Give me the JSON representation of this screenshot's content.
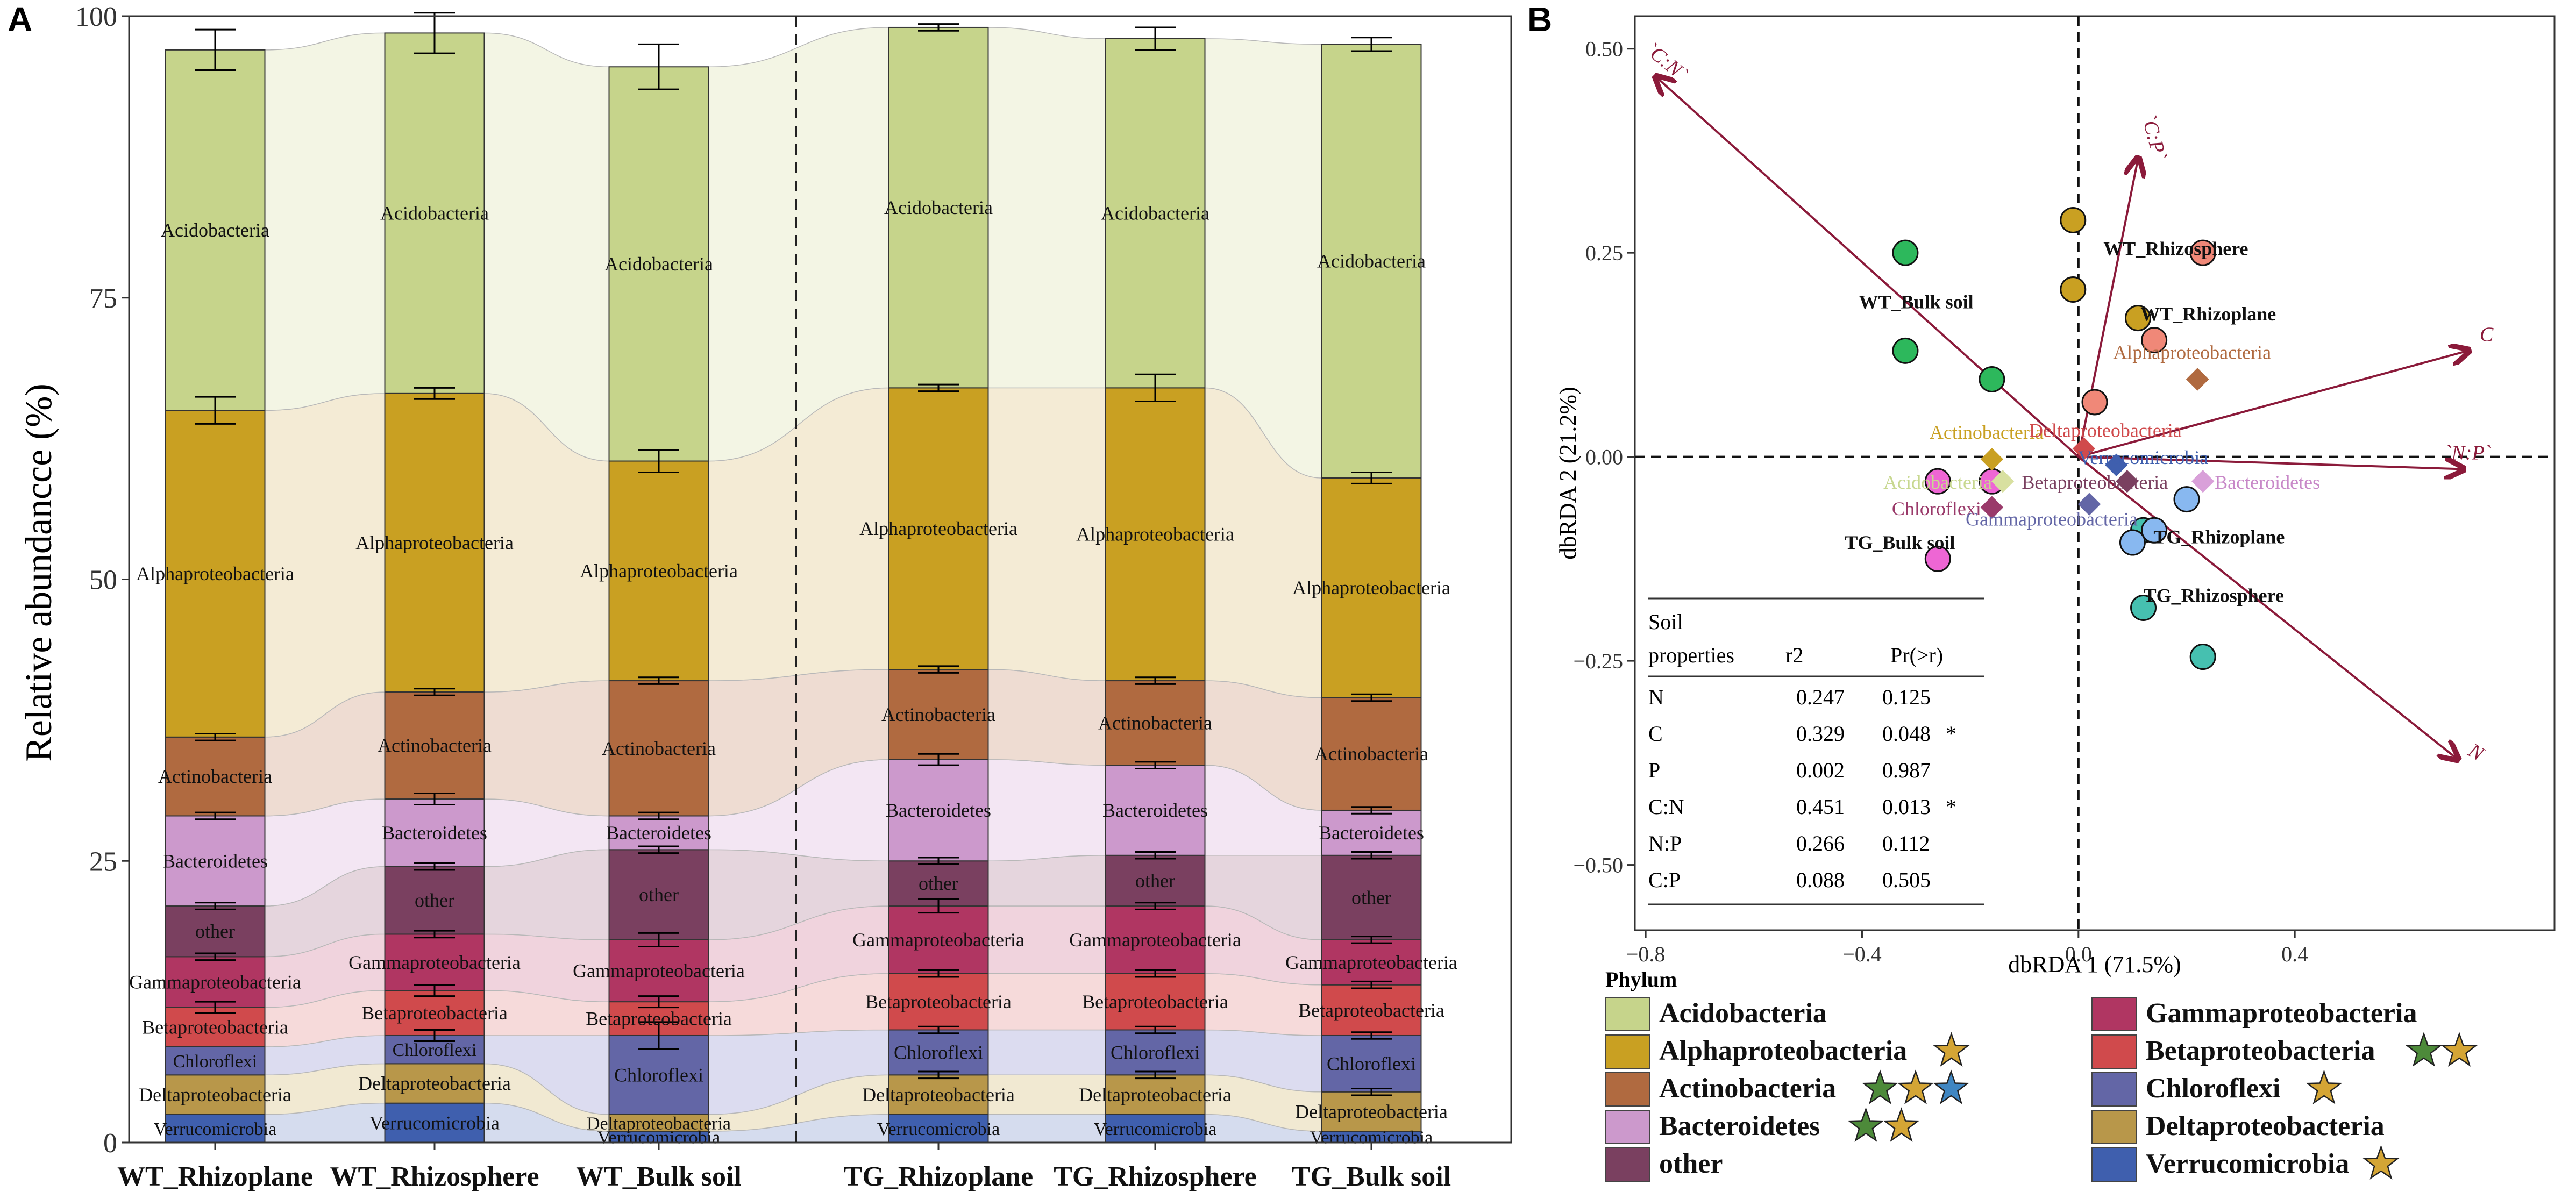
{
  "panel_a_label": "A",
  "panel_b_label": "B",
  "chart_data": [
    {
      "type": "stacked-bar",
      "panel": "A",
      "ylabel": "Relative abundancce (%)",
      "ylim": [
        0,
        100
      ],
      "yticks": [
        "0",
        "25",
        "50",
        "75",
        "100"
      ],
      "ytick_values": [
        0,
        25,
        50,
        75,
        100
      ],
      "categories": [
        "WT_Rhizoplane",
        "WT_Rhizosphere",
        "WT_Bulk soil",
        "TG_Rhizoplane",
        "TG_Rhizosphere",
        "TG_Bulk soil"
      ],
      "series": [
        {
          "name": "Verrucomicrobia",
          "label": "Verrucomicrobia",
          "color": "#3f5fae",
          "fill": "#d5dcee",
          "values": [
            2.5,
            3.5,
            1.0,
            2.5,
            2.5,
            1.0
          ],
          "err": [
            0,
            0,
            0,
            0,
            0,
            0
          ]
        },
        {
          "name": "Deltaproteobacteria",
          "label": "Deltaproteobacteria",
          "color": "#b8974a",
          "fill": "#f1e9d2",
          "values": [
            3.5,
            3.5,
            1.5,
            3.5,
            3.5,
            3.5
          ],
          "err": [
            0,
            0,
            0,
            0.3,
            0.3,
            0.3
          ]
        },
        {
          "name": "Chloroflexi",
          "label": "Chloroflexi",
          "color": "#6366a6",
          "fill": "#dcdcf0",
          "values": [
            2.5,
            2.5,
            7.0,
            4.0,
            4.0,
            5.0
          ],
          "err": [
            0,
            0.5,
            1.2,
            0.3,
            0.3,
            0.3
          ]
        },
        {
          "name": "Betaproteobacteria",
          "label": "Betaproteobacteria",
          "color": "#d04a4c",
          "fill": "#f6dada",
          "values": [
            3.5,
            4.0,
            3.0,
            5.0,
            5.0,
            4.5
          ],
          "err": [
            0.5,
            0.5,
            0.5,
            0.3,
            0.3,
            0.3
          ]
        },
        {
          "name": "Gammaproteobacteria",
          "label": "Gammaproteobacteria",
          "color": "#b03662",
          "fill": "#f0d3dd",
          "values": [
            4.5,
            5.0,
            5.5,
            6.0,
            6.0,
            4.0
          ],
          "err": [
            0.3,
            0.3,
            0.6,
            0.6,
            0.3,
            0.3
          ]
        },
        {
          "name": "other",
          "label": "other",
          "color": "#7a4060",
          "fill": "#e5d5dd",
          "values": [
            4.5,
            6.0,
            8.0,
            4.0,
            4.5,
            7.5
          ],
          "err": [
            0.3,
            0.3,
            0.3,
            0.3,
            0.3,
            0.3
          ]
        },
        {
          "name": "Bacteroidetes",
          "label": "Bacteroidetes",
          "color": "#cc99cc",
          "fill": "#f3e6f3",
          "values": [
            8.0,
            6.0,
            3.0,
            9.0,
            8.0,
            4.0
          ],
          "err": [
            0.3,
            0.5,
            0.3,
            0.5,
            0.3,
            0.3
          ]
        },
        {
          "name": "Actinobacteria",
          "label": "Actinobacteria",
          "color": "#b06a40",
          "fill": "#eedcd2",
          "values": [
            7.0,
            9.5,
            12.0,
            8.0,
            7.5,
            10.0
          ],
          "err": [
            0.3,
            0.3,
            0.3,
            0.3,
            0.3,
            0.3
          ]
        },
        {
          "name": "Alphaproteobacteria",
          "label": "Alphaproteobacteria",
          "color": "#c9a022",
          "fill": "#f4ebd5",
          "values": [
            29.0,
            26.5,
            19.5,
            25.0,
            26.0,
            19.5
          ],
          "err": [
            1.2,
            0.5,
            1.0,
            0.3,
            1.2,
            0.5
          ]
        },
        {
          "name": "Acidobacteria",
          "label": "Acidobacteria",
          "color": "#c6d48b",
          "fill": "#f3f5e4",
          "values": [
            32.0,
            32.0,
            35.0,
            32.0,
            31.0,
            38.5
          ],
          "err": [
            1.8,
            1.8,
            2.0,
            0.3,
            1.0,
            0.6
          ]
        }
      ]
    },
    {
      "type": "scatter",
      "panel": "B",
      "title": "",
      "xlabel": "dbRDA 1 (71.5%)",
      "ylabel": "dbRDA 2 (21.2%)",
      "xlim": [
        -0.82,
        0.88
      ],
      "ylim": [
        -0.58,
        0.54
      ],
      "xticks": [
        "−0.8",
        "−0.4",
        "0.0",
        "0.4"
      ],
      "xtick_values": [
        -0.8,
        -0.4,
        0.0,
        0.4
      ],
      "yticks": [
        "−0.50",
        "−0.25",
        "0.00",
        "0.25",
        "0.50"
      ],
      "ytick_values": [
        -0.5,
        -0.25,
        0.0,
        0.25,
        0.5
      ],
      "points": [
        {
          "x": -0.32,
          "y": 0.25,
          "color": "#2db85c"
        },
        {
          "x": -0.32,
          "y": 0.13,
          "color": "#2db85c"
        },
        {
          "x": -0.16,
          "y": 0.095,
          "color": "#2db85c"
        },
        {
          "x": -0.26,
          "y": -0.03,
          "color": "#ee66d4"
        },
        {
          "x": -0.16,
          "y": -0.03,
          "color": "#ee66d4"
        },
        {
          "x": -0.26,
          "y": -0.125,
          "color": "#ee66d4"
        },
        {
          "x": -0.01,
          "y": 0.29,
          "color": "#c9a022"
        },
        {
          "x": -0.01,
          "y": 0.205,
          "color": "#c9a022"
        },
        {
          "x": 0.11,
          "y": 0.17,
          "color": "#c9a022"
        },
        {
          "x": 0.03,
          "y": 0.067,
          "color": "#f08878"
        },
        {
          "x": 0.14,
          "y": 0.143,
          "color": "#f08878"
        },
        {
          "x": 0.23,
          "y": 0.25,
          "color": "#f08878"
        },
        {
          "x": 0.12,
          "y": -0.09,
          "color": "#46c0b0"
        },
        {
          "x": 0.12,
          "y": -0.185,
          "color": "#46c0b0"
        },
        {
          "x": 0.23,
          "y": -0.245,
          "color": "#46c0b0"
        },
        {
          "x": 0.1,
          "y": -0.105,
          "color": "#88b8f0"
        },
        {
          "x": 0.14,
          "y": -0.09,
          "color": "#88b8f0"
        },
        {
          "x": 0.2,
          "y": -0.052,
          "color": "#88b8f0"
        }
      ],
      "groups": [
        {
          "label": "WT_Rhizosphere",
          "x": 0.18,
          "y": 0.255
        },
        {
          "label": "WT_Bulk soil",
          "x": -0.3,
          "y": 0.19
        },
        {
          "label": "WT_Rhizoplane",
          "x": 0.24,
          "y": 0.175
        },
        {
          "label": "TG_Bulk soil",
          "x": -0.33,
          "y": -0.105
        },
        {
          "label": "TG_Rhizoplane",
          "x": 0.26,
          "y": -0.098
        },
        {
          "label": "TG_Rhizosphere",
          "x": 0.25,
          "y": -0.17
        }
      ],
      "arrows": [
        {
          "label": "`C:N`",
          "x": -0.78,
          "y": 0.465
        },
        {
          "label": "`C:P`",
          "x": 0.11,
          "y": 0.365
        },
        {
          "label": "C",
          "x": 0.72,
          "y": 0.13
        },
        {
          "label": "`N:P`",
          "x": 0.71,
          "y": -0.015
        },
        {
          "label": "N",
          "x": 0.7,
          "y": -0.37
        }
      ],
      "phyla": [
        {
          "label": "Alphaproteobacteria",
          "x": 0.22,
          "y": 0.095,
          "color": "#b06a40",
          "text_color": "#b06a40"
        },
        {
          "label": "Actinobacteria",
          "x": -0.16,
          "y": -0.003,
          "color": "#c9a022",
          "text_color": "#c9a022"
        },
        {
          "label": "Acidobacteria",
          "x": -0.14,
          "y": -0.03,
          "color": "#d8e0a0",
          "text_color": "#c8d890"
        },
        {
          "label": "Chloroflexi",
          "x": -0.16,
          "y": -0.062,
          "color": "#9a3a6a",
          "text_color": "#9a3a6a"
        },
        {
          "label": "Deltaproteobacteria",
          "x": 0.01,
          "y": 0.01,
          "color": "#d04a4c",
          "text_color": "#d04a4c"
        },
        {
          "label": "Verrucomicrobia",
          "x": 0.07,
          "y": -0.01,
          "color": "#3f5fae",
          "text_color": "#3f5fae"
        },
        {
          "label": "Bacteroidetes",
          "x": 0.23,
          "y": -0.03,
          "color": "#d9a0d9",
          "text_color": "#c888c8"
        },
        {
          "label": "Betaproteobacteria",
          "x": 0.09,
          "y": -0.03,
          "color": "#7a4060",
          "text_color": "#7a4060"
        },
        {
          "label": "Gammaproteobacteria",
          "x": 0.02,
          "y": -0.058,
          "color": "#6366a6",
          "text_color": "#6366a6"
        }
      ]
    }
  ],
  "stats_table": {
    "headers": [
      "Soil\nproperties",
      "r2",
      "Pr(>r)"
    ],
    "header_lines": [
      "Soil",
      "properties"
    ],
    "rows": [
      [
        "N",
        "0.247",
        "0.125",
        ""
      ],
      [
        "C",
        "0.329",
        "0.048",
        "*"
      ],
      [
        "P",
        "0.002",
        "0.987",
        ""
      ],
      [
        "C:N",
        "0.451",
        "0.013",
        "*"
      ],
      [
        "N:P",
        "0.266",
        "0.112",
        ""
      ],
      [
        "C:P",
        "0.088",
        "0.505",
        ""
      ]
    ]
  },
  "legend": {
    "title": "Phylum",
    "items": [
      {
        "label": "Acidobacteria",
        "color": "#c6d48b",
        "stars": []
      },
      {
        "label": "Alphaproteobacteria",
        "color": "#c9a022",
        "stars": [
          "#d4a535"
        ]
      },
      {
        "label": "Actinobacteria",
        "color": "#b06a40",
        "stars": [
          "#4d8a3a",
          "#d4a535",
          "#3f86c2"
        ]
      },
      {
        "label": "Bacteroidetes",
        "color": "#cc99cc",
        "stars": [
          "#4d8a3a",
          "#d4a535"
        ]
      },
      {
        "label": "other",
        "color": "#7a4060",
        "stars": []
      },
      {
        "label": "Gammaproteobacteria",
        "color": "#b03662",
        "stars": []
      },
      {
        "label": "Betaproteobacteria",
        "color": "#d04a4c",
        "stars": [
          "#4d8a3a",
          "#d4a535"
        ]
      },
      {
        "label": "Chloroflexi",
        "color": "#6366a6",
        "stars": [
          "#d4a535"
        ]
      },
      {
        "label": "Deltaproteobacteria",
        "color": "#b8974a",
        "stars": []
      },
      {
        "label": "Verrucomicrobia",
        "color": "#3f5fae",
        "stars": [
          "#d4a535"
        ]
      }
    ]
  }
}
